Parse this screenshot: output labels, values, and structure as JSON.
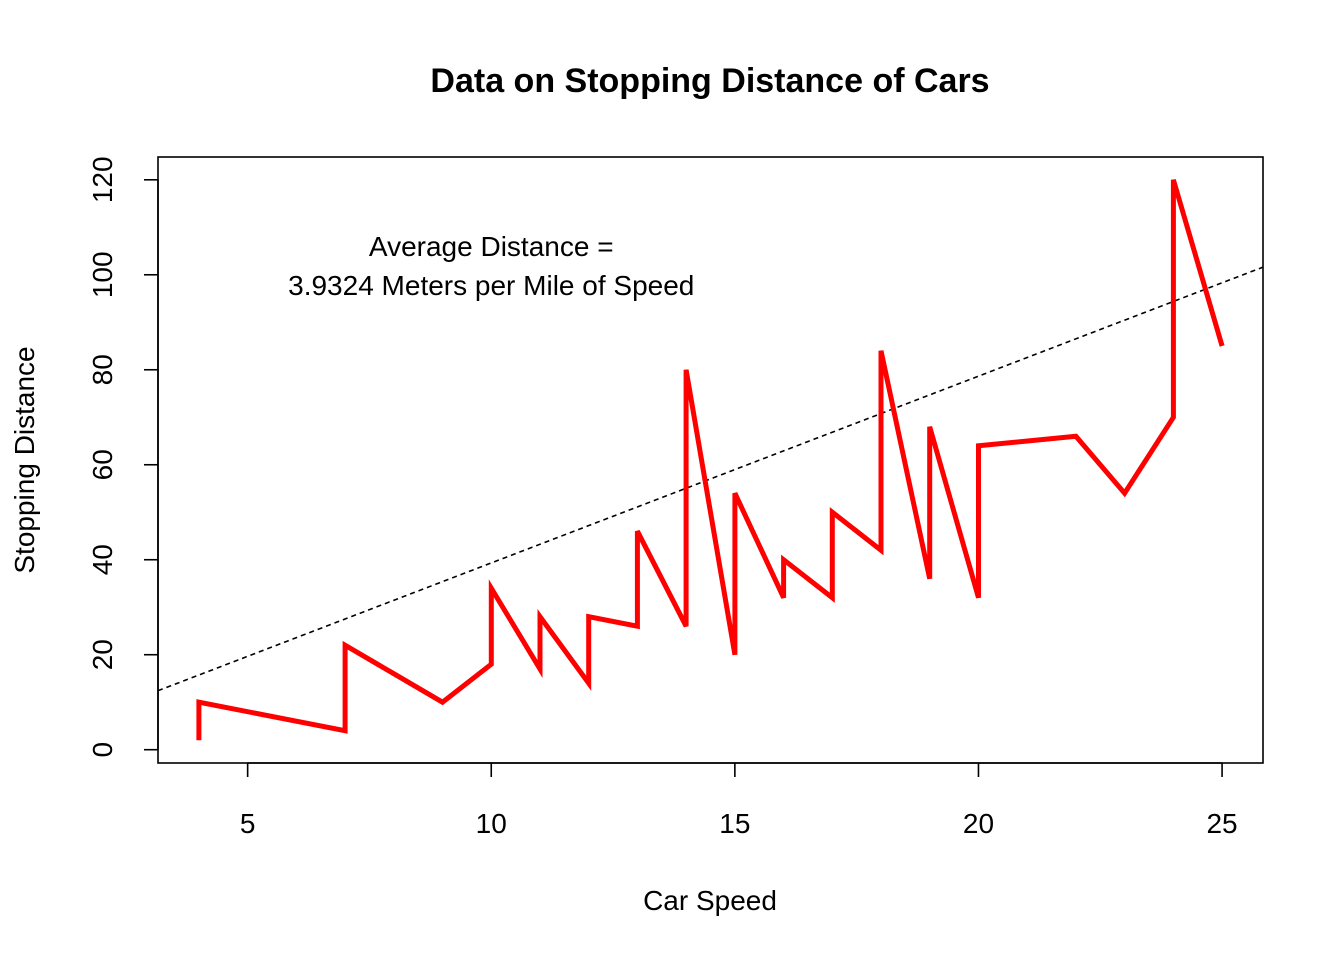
{
  "chart_data": {
    "type": "line",
    "title": "Data on Stopping Distance of Cars",
    "xlabel": "Car Speed",
    "ylabel": "Stopping Distance",
    "xlim": [
      3.16,
      25.84
    ],
    "ylim": [
      -2.8,
      124.8
    ],
    "xticks": [
      5,
      10,
      15,
      20,
      25
    ],
    "yticks": [
      0,
      20,
      40,
      60,
      80,
      100,
      120
    ],
    "annotation": [
      "Average Distance =",
      "3.9324 Meters per Mile of Speed"
    ],
    "annotation_anchor": {
      "x": 10,
      "y": 102
    },
    "series": [
      {
        "color": "#ff0000",
        "x": [
          4,
          4,
          7,
          7,
          8,
          9,
          10,
          10,
          10,
          11,
          11,
          12,
          12,
          12,
          12,
          13,
          13,
          13,
          13,
          14,
          14,
          14,
          14,
          15,
          15,
          15,
          16,
          16,
          17,
          17,
          17,
          18,
          18,
          18,
          18,
          19,
          19,
          19,
          20,
          20,
          20,
          20,
          20,
          22,
          23,
          24,
          24,
          24,
          24,
          25
        ],
        "values": [
          2,
          10,
          4,
          22,
          16,
          10,
          18,
          26,
          34,
          17,
          28,
          14,
          20,
          24,
          28,
          26,
          34,
          34,
          46,
          26,
          36,
          60,
          80,
          20,
          26,
          54,
          32,
          40,
          32,
          40,
          50,
          42,
          56,
          76,
          84,
          36,
          46,
          68,
          32,
          48,
          52,
          56,
          64,
          66,
          54,
          70,
          92,
          93,
          120,
          85
        ]
      }
    ],
    "reference_line": {
      "intercept": 0,
      "slope": 3.9324,
      "color": "#000000",
      "style": "dashed"
    }
  }
}
